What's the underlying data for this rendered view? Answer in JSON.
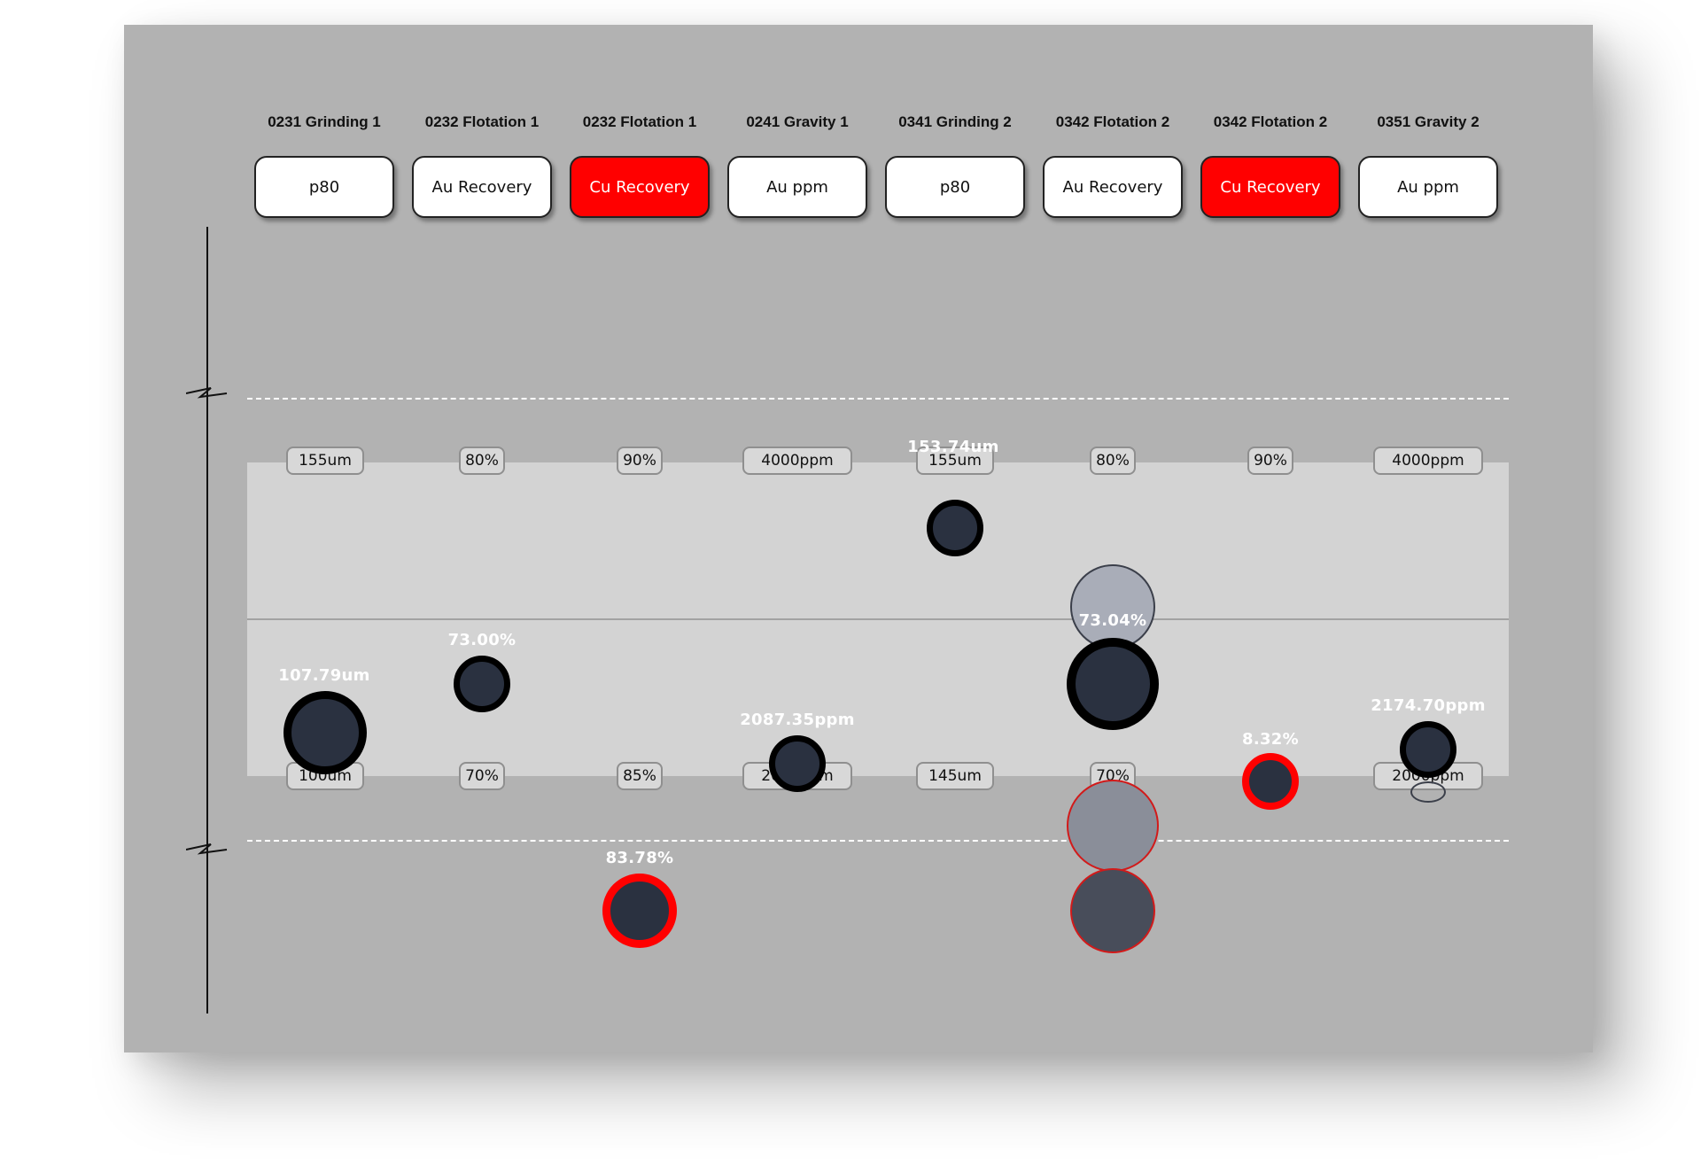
{
  "units": [
    {
      "title": "0231 Grinding 1",
      "metric": "p80",
      "alert": false,
      "upper_limit": "155um",
      "lower_limit": "100um",
      "value": "107.79um",
      "status": "normal"
    },
    {
      "title": "0232 Flotation 1",
      "metric": "Au Recovery",
      "alert": false,
      "upper_limit": "80%",
      "lower_limit": "70%",
      "value": "73.00%",
      "status": "normal"
    },
    {
      "title": "0232 Flotation 1",
      "metric": "Cu Recovery",
      "alert": true,
      "upper_limit": "90%",
      "lower_limit": "85%",
      "value": "83.78%",
      "status": "alarm"
    },
    {
      "title": "0241 Gravity 1",
      "metric": "Au ppm",
      "alert": false,
      "upper_limit": "4000ppm",
      "lower_limit": "2000ppm",
      "value": "2087.35ppm",
      "status": "normal"
    },
    {
      "title": "0341 Grinding 2",
      "metric": "p80",
      "alert": false,
      "upper_limit": "155um",
      "lower_limit": "145um",
      "value": "153.74um",
      "status": "normal"
    },
    {
      "title": "0342 Flotation 2",
      "metric": "Au Recovery",
      "alert": false,
      "upper_limit": "80%",
      "lower_limit": "70%",
      "value": "73.04%",
      "status": "normal"
    },
    {
      "title": "0342 Flotation 2",
      "metric": "Cu Recovery",
      "alert": true,
      "upper_limit": "90%",
      "lower_limit": "",
      "value": "8.32%",
      "status": "alarm"
    },
    {
      "title": "0351 Gravity 2",
      "metric": "Au ppm",
      "alert": false,
      "upper_limit": "4000ppm",
      "lower_limit": "2000ppm",
      "value": "2174.70ppm",
      "status": "normal"
    }
  ],
  "colors": {
    "panel": "#b2b2b2",
    "band": "#d3d3d3",
    "alert": "#ff0000",
    "marker_fill": "#2a3140",
    "marker_ring": "#000000",
    "label_text": "#ffffff"
  }
}
